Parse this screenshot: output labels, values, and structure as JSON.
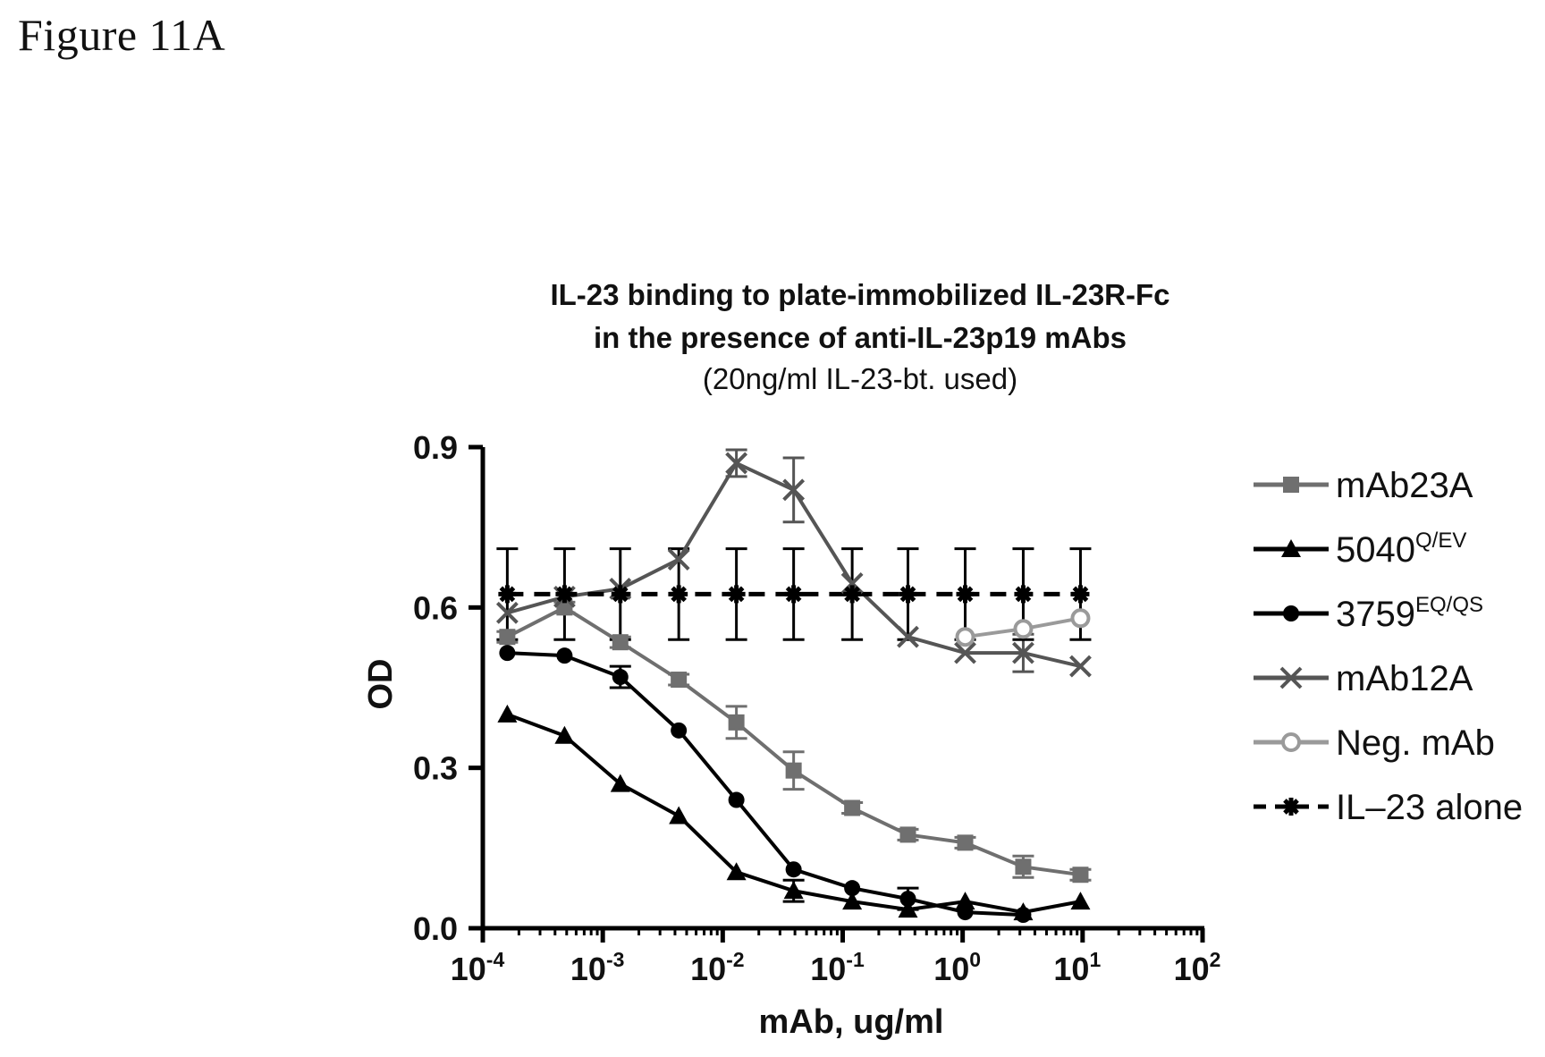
{
  "figure_label": "Figure 11A",
  "chart_data": {
    "type": "line",
    "title_line1": "IL-23 binding to plate-immobilized IL-23R-Fc",
    "title_line2": "in the presence of anti-IL-23p19 mAbs",
    "subtitle": "(20ng/ml IL-23-bt. used)",
    "xlabel": "mAb, ug/ml",
    "ylabel": "OD",
    "xscale": "log",
    "xlim": [
      0.0001,
      100
    ],
    "ylim": [
      0,
      0.9
    ],
    "x_tick_exponents": [
      -4,
      -3,
      -2,
      -1,
      0,
      1,
      2
    ],
    "y_ticks": [
      0.0,
      0.3,
      0.6,
      0.9
    ],
    "y_tick_labels": [
      "0.0",
      "0.3",
      "0.6",
      "0.9"
    ],
    "legend_position": "right",
    "x": [
      0.00016,
      0.00048,
      0.0014,
      0.0043,
      0.013,
      0.039,
      0.12,
      0.35,
      1.05,
      3.2,
      9.6
    ],
    "series": [
      {
        "name": "mAb23A",
        "sup": "",
        "marker": "square",
        "color": "#6f6f6f",
        "dashed": false,
        "values": [
          0.545,
          0.6,
          0.535,
          0.465,
          0.385,
          0.295,
          0.225,
          0.175,
          0.16,
          0.115,
          0.1
        ],
        "errors": [
          0.01,
          0.01,
          0.01,
          0.01,
          0.03,
          0.035,
          0.01,
          0.01,
          0.01,
          0.02,
          0.01
        ]
      },
      {
        "name": "5040",
        "sup": "Q/EV",
        "marker": "triangle",
        "color": "#000000",
        "dashed": false,
        "values": [
          0.4,
          0.36,
          0.27,
          0.21,
          0.105,
          0.07,
          0.05,
          0.035,
          0.05,
          0.03,
          0.05
        ],
        "errors": [
          0.0,
          0.0,
          0.0,
          0.0,
          0.0,
          0.02,
          0.0,
          0.0,
          0.0,
          0.0,
          0.0
        ]
      },
      {
        "name": "3759",
        "sup": "EQ/QS",
        "marker": "circle",
        "color": "#000000",
        "dashed": false,
        "values": [
          0.515,
          0.51,
          0.47,
          0.37,
          0.24,
          0.11,
          0.075,
          0.055,
          0.03,
          0.025,
          null
        ],
        "errors": [
          0.0,
          0.0,
          0.02,
          0.0,
          0.0,
          0.0,
          0.0,
          0.02,
          0.0,
          0.0,
          0.0
        ]
      },
      {
        "name": "mAb12A",
        "sup": "",
        "marker": "x",
        "color": "#555555",
        "dashed": false,
        "values": [
          0.59,
          0.62,
          0.635,
          0.69,
          0.87,
          0.82,
          0.645,
          0.545,
          0.515,
          0.515,
          0.49
        ],
        "errors": [
          0.0,
          0.0,
          0.0,
          0.0,
          0.025,
          0.06,
          0.0,
          0.0,
          0.0,
          0.035,
          0.0
        ]
      },
      {
        "name": "Neg. mAb",
        "sup": "",
        "marker": "open-circle",
        "color": "#9a9a9a",
        "dashed": false,
        "values": [
          null,
          null,
          null,
          null,
          null,
          null,
          null,
          null,
          0.545,
          0.56,
          0.58
        ],
        "errors": [
          0.0,
          0.0,
          0.0,
          0.0,
          0.0,
          0.0,
          0.0,
          0.0,
          0.0,
          0.0,
          0.0
        ]
      },
      {
        "name": "IL–23 alone",
        "sup": "",
        "marker": "star",
        "color": "#000000",
        "dashed": true,
        "values": [
          0.625,
          0.625,
          0.625,
          0.625,
          0.625,
          0.625,
          0.625,
          0.625,
          0.625,
          0.625,
          0.625
        ],
        "errors": [
          0.085,
          0.085,
          0.085,
          0.085,
          0.085,
          0.085,
          0.085,
          0.085,
          0.085,
          0.085,
          0.085
        ]
      }
    ]
  }
}
